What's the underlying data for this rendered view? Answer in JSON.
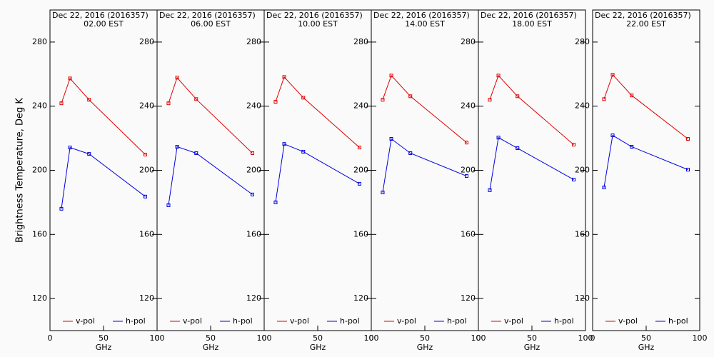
{
  "chart_data": [
    {
      "type": "line",
      "title": "Dec 22, 2016 (2016357)",
      "subtitle": "02.00 EST",
      "xlabel": "GHz",
      "ylabel": "Brightness Temperature, Deg K",
      "x": [
        10.65,
        18.7,
        36.5,
        89.0
      ],
      "xlim": [
        0,
        100
      ],
      "xticks": [
        0,
        50,
        100
      ],
      "ylim": [
        100,
        300
      ],
      "yticks": [
        120,
        160,
        200,
        240,
        280
      ],
      "series": [
        {
          "name": "v-pol",
          "color": "#e00000",
          "values": [
            241.8,
            257.3,
            244.0,
            209.8
          ]
        },
        {
          "name": "h-pol",
          "color": "#0000e0",
          "values": [
            176.0,
            214.2,
            210.2,
            183.6
          ]
        }
      ]
    },
    {
      "type": "line",
      "title": "Dec 22, 2016 (2016357)",
      "subtitle": "06.00 EST",
      "xlabel": "GHz",
      "x": [
        10.65,
        18.7,
        36.5,
        89.0
      ],
      "xlim": [
        0,
        100
      ],
      "xticks": [
        0,
        50,
        100
      ],
      "ylim": [
        100,
        300
      ],
      "yticks": [
        120,
        160,
        200,
        240,
        280
      ],
      "series": [
        {
          "name": "v-pol",
          "color": "#e00000",
          "values": [
            241.8,
            257.8,
            244.4,
            210.7
          ]
        },
        {
          "name": "h-pol",
          "color": "#0000e0",
          "values": [
            178.2,
            214.7,
            210.7,
            184.9
          ]
        }
      ]
    },
    {
      "type": "line",
      "title": "Dec 22, 2016 (2016357)",
      "subtitle": "10.00 EST",
      "xlabel": "GHz",
      "x": [
        10.65,
        18.7,
        36.5,
        89.0
      ],
      "xlim": [
        0,
        100
      ],
      "xticks": [
        0,
        50,
        100
      ],
      "ylim": [
        100,
        300
      ],
      "yticks": [
        120,
        160,
        200,
        240,
        280
      ],
      "series": [
        {
          "name": "v-pol",
          "color": "#e00000",
          "values": [
            242.7,
            258.2,
            245.3,
            214.2
          ]
        },
        {
          "name": "h-pol",
          "color": "#0000e0",
          "values": [
            180.0,
            216.4,
            211.6,
            191.6
          ]
        }
      ]
    },
    {
      "type": "line",
      "title": "Dec 22, 2016 (2016357)",
      "subtitle": "14.00 EST",
      "xlabel": "GHz",
      "x": [
        10.65,
        18.7,
        36.5,
        89.0
      ],
      "xlim": [
        0,
        100
      ],
      "xticks": [
        0,
        50,
        100
      ],
      "ylim": [
        100,
        300
      ],
      "yticks": [
        120,
        160,
        200,
        240,
        280
      ],
      "series": [
        {
          "name": "v-pol",
          "color": "#e00000",
          "values": [
            244.0,
            259.1,
            246.2,
            217.3
          ]
        },
        {
          "name": "h-pol",
          "color": "#0000e0",
          "values": [
            186.2,
            219.6,
            210.7,
            196.4
          ]
        }
      ]
    },
    {
      "type": "line",
      "title": "Dec 22, 2016 (2016357)",
      "subtitle": "18.00 EST",
      "xlabel": "GHz",
      "x": [
        10.65,
        18.7,
        36.5,
        89.0
      ],
      "xlim": [
        0,
        100
      ],
      "xticks": [
        0,
        50,
        100
      ],
      "ylim": [
        100,
        300
      ],
      "yticks": [
        120,
        160,
        200,
        240,
        280
      ],
      "series": [
        {
          "name": "v-pol",
          "color": "#e00000",
          "values": [
            244.0,
            259.1,
            246.2,
            216.0
          ]
        },
        {
          "name": "h-pol",
          "color": "#0000e0",
          "values": [
            187.6,
            220.4,
            213.8,
            194.2
          ]
        }
      ]
    },
    {
      "type": "line",
      "title": "Dec 22, 2016 (2016357)",
      "subtitle": "22.00 EST",
      "xlabel": "GHz",
      "x": [
        10.65,
        18.7,
        36.5,
        89.0
      ],
      "xlim": [
        0,
        100
      ],
      "xticks": [
        0,
        50,
        100
      ],
      "ylim": [
        100,
        300
      ],
      "yticks": [
        120,
        160,
        200,
        240,
        280
      ],
      "series": [
        {
          "name": "v-pol",
          "color": "#e00000",
          "values": [
            244.4,
            259.6,
            246.7,
            219.6
          ]
        },
        {
          "name": "h-pol",
          "color": "#0000e0",
          "values": [
            189.3,
            221.8,
            214.7,
            200.4
          ]
        }
      ]
    }
  ]
}
